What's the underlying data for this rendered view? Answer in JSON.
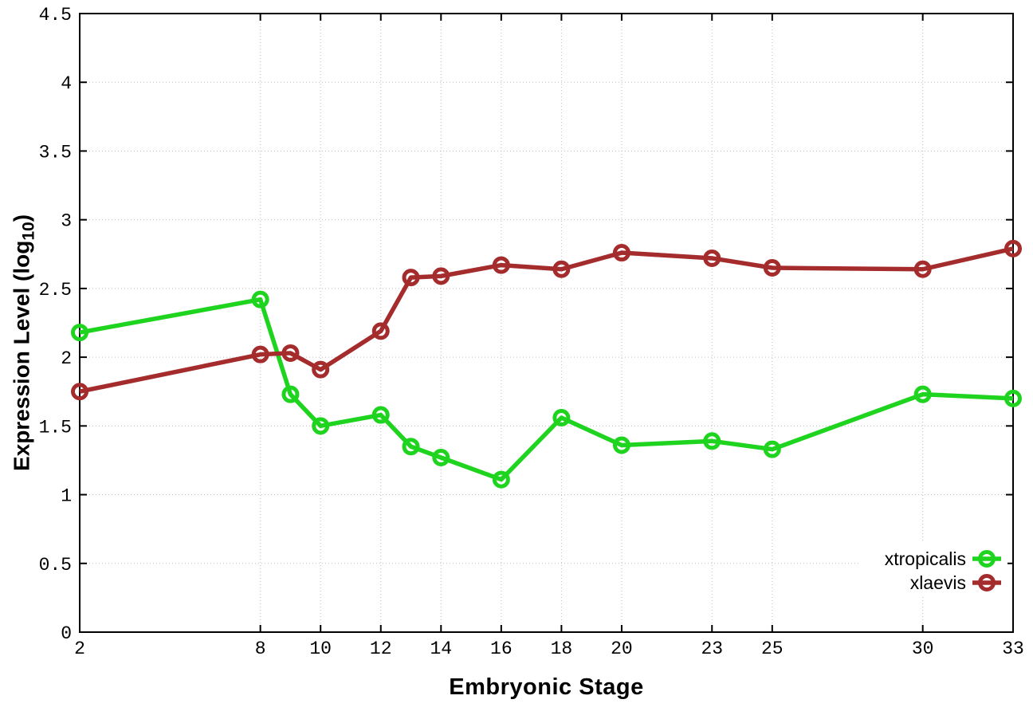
{
  "chart_data": {
    "type": "line",
    "title": "",
    "xlabel": "Embryonic Stage",
    "ylabel": "Expression Level (log10)",
    "ylabel_parts": {
      "prefix": "Expression Level (log",
      "sub": "10",
      "suffix": ")"
    },
    "x": [
      2,
      8,
      9,
      10,
      12,
      13,
      14,
      16,
      18,
      20,
      23,
      25,
      30,
      33
    ],
    "xtick_labels": [
      "2",
      "8",
      "10",
      "12",
      "14",
      "16",
      "18",
      "20",
      "23",
      "25",
      "30",
      "33"
    ],
    "xticks": [
      2,
      8,
      10,
      12,
      14,
      16,
      18,
      20,
      23,
      25,
      30,
      33
    ],
    "xlim": [
      2,
      33
    ],
    "yticks": [
      0,
      0.5,
      1,
      1.5,
      2,
      2.5,
      3,
      3.5,
      4,
      4.5
    ],
    "ytick_labels": [
      "0",
      "0.5",
      "1",
      "1.5",
      "2",
      "2.5",
      "3",
      "3.5",
      "4",
      "4.5"
    ],
    "ylim": [
      0,
      4.5
    ],
    "grid": true,
    "legend_position": "bottom-right",
    "series": [
      {
        "name": "xtropicalis",
        "color": "#1ed41e",
        "marker": "open-circle",
        "values": [
          2.18,
          2.42,
          1.73,
          1.5,
          1.58,
          1.35,
          1.27,
          1.11,
          1.56,
          1.36,
          1.39,
          1.33,
          1.73,
          1.7
        ]
      },
      {
        "name": "xlaevis",
        "color": "#a52c2c",
        "marker": "open-circle",
        "values": [
          1.75,
          2.02,
          2.03,
          1.91,
          2.19,
          2.58,
          2.59,
          2.67,
          2.64,
          2.76,
          2.72,
          2.65,
          2.64,
          2.79
        ]
      }
    ],
    "colors": {
      "background": "#ffffff",
      "border": "#000000",
      "grid": "#bdbdbd",
      "tick_label": "#000000"
    }
  }
}
